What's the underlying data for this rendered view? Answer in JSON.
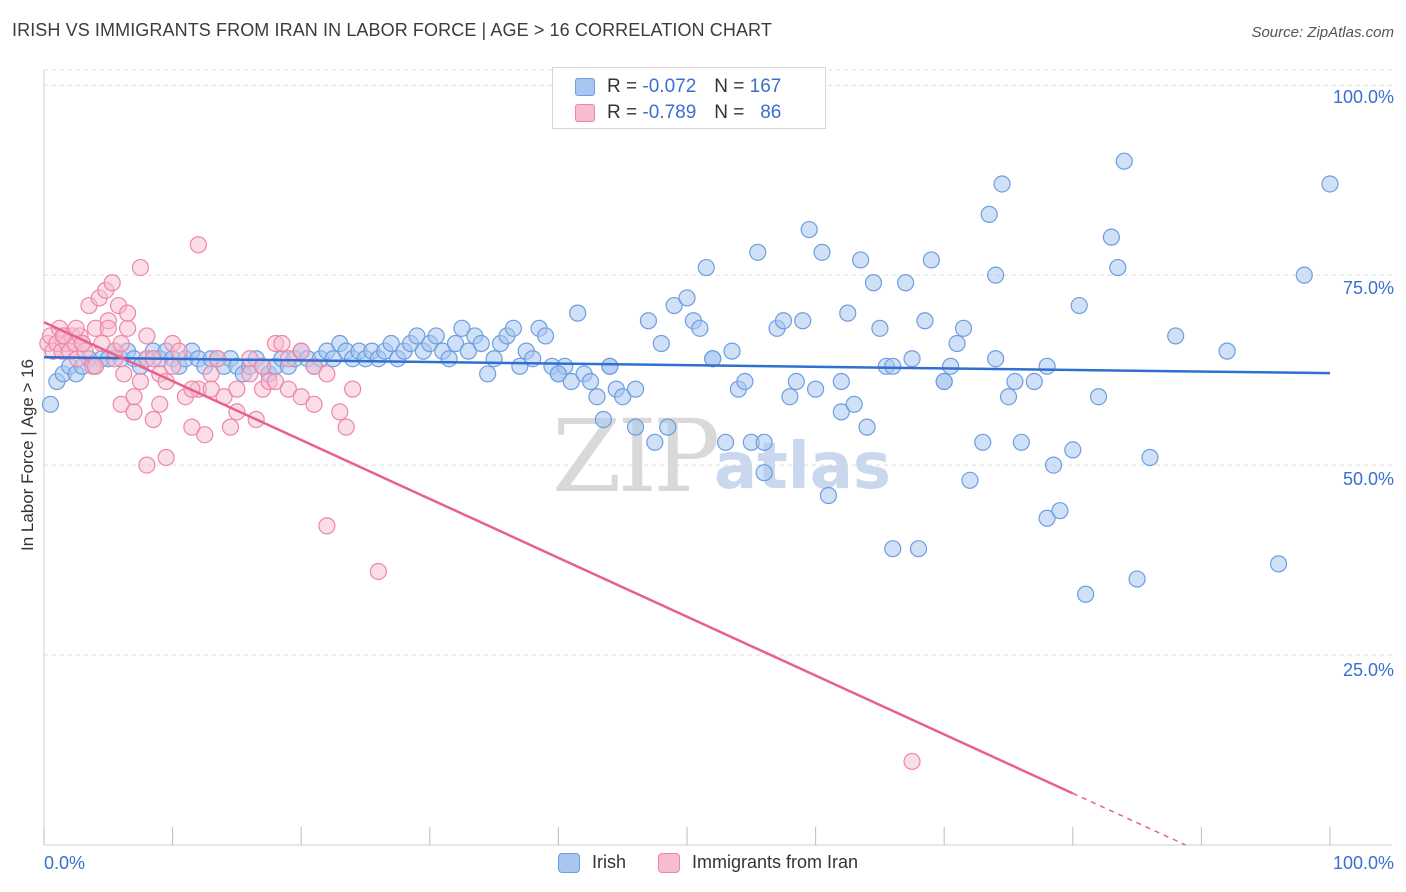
{
  "header": {
    "title": "IRISH VS IMMIGRANTS FROM IRAN IN LABOR FORCE | AGE > 16 CORRELATION CHART",
    "source": "Source: ZipAtlas.com"
  },
  "watermark": {
    "zip": "ZIP",
    "atlas": "atlas"
  },
  "legend_top": {
    "rows": [
      {
        "r_label": "R =",
        "r_value": "-0.072",
        "n_label": "N =",
        "n_value": "167"
      },
      {
        "r_label": "R =",
        "r_value": "-0.789",
        "n_label": "N =",
        "n_value": "86"
      }
    ]
  },
  "legend_bottom": {
    "irish": "Irish",
    "iran": "Immigrants from Iran"
  },
  "colors": {
    "irish_fill": "#a8c6f0",
    "irish_stroke": "#6d9ee0",
    "irish_line": "#2f6fd1",
    "iran_fill": "#f7bcd0",
    "iran_stroke": "#ee86a8",
    "iran_line": "#e8608e",
    "grid": "#dcdcdc",
    "accent_text": "#3a6fd0"
  },
  "chart_data": {
    "type": "scatter",
    "title": "IRISH VS IMMIGRANTS FROM IRAN IN LABOR FORCE | AGE > 16 CORRELATION CHART",
    "xlabel": "",
    "ylabel": "In Labor Force | Age > 16",
    "xlim": [
      0,
      100
    ],
    "ylim": [
      0,
      102
    ],
    "x_tick_labels": [
      "0.0%",
      "100.0%"
    ],
    "y_tick_labels": [
      "25.0%",
      "50.0%",
      "75.0%",
      "100.0%"
    ],
    "y_ticks": [
      25,
      50,
      75,
      100
    ],
    "grid": true,
    "legend": "top-center",
    "series": [
      {
        "name": "Irish",
        "r": -0.072,
        "n": 167,
        "trend": {
          "x": [
            0,
            100
          ],
          "y": [
            64.2,
            62.1
          ]
        },
        "points": [
          [
            0.5,
            58
          ],
          [
            1,
            61
          ],
          [
            1.5,
            62
          ],
          [
            2,
            63
          ],
          [
            2.5,
            62
          ],
          [
            3,
            63
          ],
          [
            3.5,
            64
          ],
          [
            4,
            63
          ],
          [
            4.5,
            64
          ],
          [
            5,
            64
          ],
          [
            5.5,
            65
          ],
          [
            6,
            64
          ],
          [
            6.5,
            65
          ],
          [
            7,
            64
          ],
          [
            7.5,
            63
          ],
          [
            8,
            64
          ],
          [
            8.5,
            65
          ],
          [
            9,
            64
          ],
          [
            9.5,
            65
          ],
          [
            10,
            64
          ],
          [
            10.5,
            63
          ],
          [
            11,
            64
          ],
          [
            11.5,
            65
          ],
          [
            12,
            64
          ],
          [
            12.5,
            63
          ],
          [
            13,
            64
          ],
          [
            13.5,
            64
          ],
          [
            14,
            63
          ],
          [
            14.5,
            64
          ],
          [
            15,
            63
          ],
          [
            15.5,
            62
          ],
          [
            16,
            63
          ],
          [
            16.5,
            64
          ],
          [
            17,
            63
          ],
          [
            17.5,
            62
          ],
          [
            18,
            63
          ],
          [
            18.5,
            64
          ],
          [
            19,
            63
          ],
          [
            19.5,
            64
          ],
          [
            20,
            65
          ],
          [
            20.5,
            64
          ],
          [
            21,
            63
          ],
          [
            21.5,
            64
          ],
          [
            22,
            65
          ],
          [
            22.5,
            64
          ],
          [
            23,
            66
          ],
          [
            23.5,
            65
          ],
          [
            24,
            64
          ],
          [
            24.5,
            65
          ],
          [
            25,
            64
          ],
          [
            25.5,
            65
          ],
          [
            26,
            64
          ],
          [
            26.5,
            65
          ],
          [
            27,
            66
          ],
          [
            27.5,
            64
          ],
          [
            28,
            65
          ],
          [
            28.5,
            66
          ],
          [
            29,
            67
          ],
          [
            29.5,
            65
          ],
          [
            30,
            66
          ],
          [
            30.5,
            67
          ],
          [
            31,
            65
          ],
          [
            31.5,
            64
          ],
          [
            32,
            66
          ],
          [
            32.5,
            68
          ],
          [
            33,
            65
          ],
          [
            33.5,
            67
          ],
          [
            34,
            66
          ],
          [
            34.5,
            62
          ],
          [
            35,
            64
          ],
          [
            35.5,
            66
          ],
          [
            36,
            67
          ],
          [
            36.5,
            68
          ],
          [
            37,
            63
          ],
          [
            37.5,
            65
          ],
          [
            38,
            64
          ],
          [
            38.5,
            68
          ],
          [
            39,
            67
          ],
          [
            39.5,
            63
          ],
          [
            40,
            62
          ],
          [
            40.5,
            63
          ],
          [
            41,
            61
          ],
          [
            41.5,
            70
          ],
          [
            42,
            62
          ],
          [
            42.5,
            61
          ],
          [
            43,
            59
          ],
          [
            43.5,
            56
          ],
          [
            44,
            63
          ],
          [
            44.5,
            60
          ],
          [
            45,
            59
          ],
          [
            46,
            55
          ],
          [
            47,
            69
          ],
          [
            47.5,
            53
          ],
          [
            48,
            66
          ],
          [
            48.5,
            55
          ],
          [
            49,
            71
          ],
          [
            50,
            72
          ],
          [
            50.5,
            69
          ],
          [
            51,
            68
          ],
          [
            51.5,
            76
          ],
          [
            52,
            64
          ],
          [
            53,
            53
          ],
          [
            53.5,
            65
          ],
          [
            54,
            60
          ],
          [
            54.5,
            61
          ],
          [
            55,
            53
          ],
          [
            55.5,
            78
          ],
          [
            56,
            49
          ],
          [
            57,
            68
          ],
          [
            57.5,
            69
          ],
          [
            58,
            59
          ],
          [
            58.5,
            61
          ],
          [
            59,
            69
          ],
          [
            59.5,
            81
          ],
          [
            60,
            60
          ],
          [
            60.5,
            78
          ],
          [
            61,
            46
          ],
          [
            62,
            57
          ],
          [
            62.5,
            70
          ],
          [
            63,
            58
          ],
          [
            63.5,
            77
          ],
          [
            64,
            55
          ],
          [
            64.5,
            74
          ],
          [
            65,
            68
          ],
          [
            65.5,
            63
          ],
          [
            66,
            39
          ],
          [
            67,
            74
          ],
          [
            67.5,
            64
          ],
          [
            68,
            39
          ],
          [
            68.5,
            69
          ],
          [
            69,
            77
          ],
          [
            70,
            61
          ],
          [
            70.5,
            63
          ],
          [
            71,
            66
          ],
          [
            71.5,
            68
          ],
          [
            72,
            48
          ],
          [
            73,
            53
          ],
          [
            73.5,
            83
          ],
          [
            74,
            75
          ],
          [
            74.5,
            87
          ],
          [
            75,
            59
          ],
          [
            75.5,
            61
          ],
          [
            76,
            53
          ],
          [
            77,
            61
          ],
          [
            78,
            43
          ],
          [
            78.5,
            50
          ],
          [
            79,
            44
          ],
          [
            80,
            52
          ],
          [
            80.5,
            71
          ],
          [
            81,
            33
          ],
          [
            82,
            59
          ],
          [
            83,
            80
          ],
          [
            83.5,
            76
          ],
          [
            84,
            90
          ],
          [
            85,
            35
          ],
          [
            86,
            51
          ],
          [
            88,
            67
          ],
          [
            92,
            65
          ],
          [
            96,
            37
          ],
          [
            98,
            75
          ],
          [
            100,
            87
          ],
          [
            40,
            62
          ],
          [
            44,
            63
          ],
          [
            46,
            60
          ],
          [
            52,
            64
          ],
          [
            56,
            53
          ],
          [
            62,
            61
          ],
          [
            66,
            63
          ],
          [
            70,
            61
          ],
          [
            74,
            64
          ],
          [
            78,
            63
          ]
        ]
      },
      {
        "name": "Immigrants from Iran",
        "r": -0.789,
        "n": 86,
        "trend": {
          "x": [
            0,
            80
          ],
          "y": [
            68.8,
            6.8
          ]
        },
        "trend_dashed": {
          "x": [
            80,
            100
          ],
          "y": [
            6.8,
            -8.7
          ]
        },
        "points": [
          [
            0.3,
            66
          ],
          [
            0.5,
            67
          ],
          [
            0.7,
            65
          ],
          [
            1,
            66
          ],
          [
            1.2,
            68
          ],
          [
            1.4,
            65
          ],
          [
            1.6,
            67
          ],
          [
            1.8,
            66
          ],
          [
            2,
            65
          ],
          [
            2.2,
            67
          ],
          [
            2.4,
            66
          ],
          [
            2.6,
            64
          ],
          [
            2.8,
            67
          ],
          [
            3,
            66
          ],
          [
            3.2,
            65
          ],
          [
            3.5,
            71
          ],
          [
            3.8,
            63
          ],
          [
            4,
            68
          ],
          [
            4.3,
            72
          ],
          [
            4.5,
            66
          ],
          [
            4.8,
            73
          ],
          [
            5,
            69
          ],
          [
            5.3,
            74
          ],
          [
            5.5,
            64
          ],
          [
            5.8,
            71
          ],
          [
            6,
            58
          ],
          [
            6.2,
            62
          ],
          [
            6.5,
            68
          ],
          [
            7,
            57
          ],
          [
            7.5,
            61
          ],
          [
            8,
            64
          ],
          [
            8.5,
            56
          ],
          [
            9,
            62
          ],
          [
            9.5,
            51
          ],
          [
            10,
            66
          ],
          [
            10.5,
            65
          ],
          [
            11,
            59
          ],
          [
            11.5,
            55
          ],
          [
            12,
            60
          ],
          [
            12.5,
            54
          ],
          [
            13,
            62
          ],
          [
            13.5,
            64
          ],
          [
            14,
            59
          ],
          [
            14.5,
            55
          ],
          [
            15,
            60
          ],
          [
            16,
            64
          ],
          [
            16.5,
            56
          ],
          [
            17,
            60
          ],
          [
            17.5,
            61
          ],
          [
            18,
            66
          ],
          [
            18.5,
            66
          ],
          [
            19,
            64
          ],
          [
            20,
            65
          ],
          [
            21,
            63
          ],
          [
            22,
            62
          ],
          [
            23,
            57
          ],
          [
            23.5,
            55
          ],
          [
            24,
            60
          ],
          [
            26,
            36
          ],
          [
            1.5,
            67
          ],
          [
            2.5,
            68
          ],
          [
            3,
            66
          ],
          [
            4,
            63
          ],
          [
            5,
            68
          ],
          [
            6.5,
            70
          ],
          [
            7,
            59
          ],
          [
            8,
            67
          ],
          [
            9,
            58
          ],
          [
            10,
            63
          ],
          [
            11.5,
            60
          ],
          [
            12,
            79
          ],
          [
            13,
            60
          ],
          [
            15,
            57
          ],
          [
            16,
            62
          ],
          [
            17,
            63
          ],
          [
            7.5,
            76
          ],
          [
            8.5,
            64
          ],
          [
            9.5,
            61
          ],
          [
            18,
            61
          ],
          [
            19,
            60
          ],
          [
            20,
            59
          ],
          [
            21,
            58
          ],
          [
            22,
            42
          ],
          [
            67.5,
            11
          ],
          [
            8,
            50
          ],
          [
            5.5,
            65
          ],
          [
            6,
            66
          ]
        ]
      }
    ]
  }
}
